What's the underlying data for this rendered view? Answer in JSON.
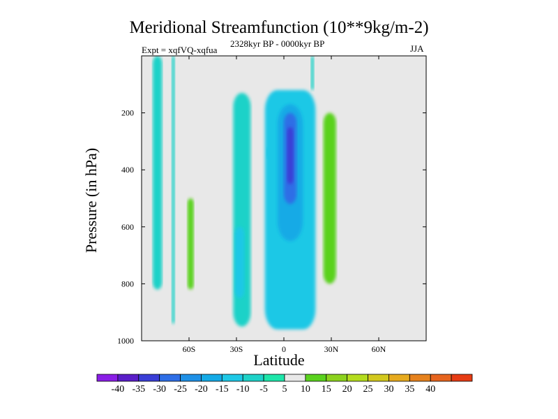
{
  "chart_data": {
    "type": "heatmap",
    "title": "Meridional Streamfunction (10**9kg/m-2)",
    "experiment": "Expt = xqfVQ-xqfua",
    "period": "2328kyr BP - 0000kyr BP",
    "season": "JJA",
    "xlabel": "Latitude",
    "ylabel": "Pressure (in hPa)",
    "xlim": [
      -90,
      90
    ],
    "ylim": [
      0,
      1000
    ],
    "x_ticks": [
      {
        "value": -60,
        "label": "60S"
      },
      {
        "value": -30,
        "label": "30S"
      },
      {
        "value": 0,
        "label": "0"
      },
      {
        "value": 30,
        "label": "30N"
      },
      {
        "value": 60,
        "label": "60N"
      }
    ],
    "y_ticks": [
      {
        "value": 200,
        "label": "200"
      },
      {
        "value": 400,
        "label": "400"
      },
      {
        "value": 600,
        "label": "600"
      },
      {
        "value": 800,
        "label": "800"
      },
      {
        "value": 1000,
        "label": "1000"
      }
    ],
    "colorbar": {
      "labels": [
        "-40",
        "-35",
        "-30",
        "-25",
        "-20",
        "-15",
        "-10",
        "-5",
        "5",
        "10",
        "15",
        "20",
        "25",
        "30",
        "35",
        "40"
      ],
      "colors": [
        "#8a1ee6",
        "#5a1ec8",
        "#3a3ed6",
        "#2e6ee6",
        "#1e90e6",
        "#14aae6",
        "#1ec8e6",
        "#1ed2c8",
        "#1ee6aa",
        "#e8e8e8",
        "#5ad21e",
        "#8cd21e",
        "#b4dc1e",
        "#d2c81e",
        "#e6aa1e",
        "#e6821e",
        "#e6641e",
        "#e63c14"
      ],
      "zero_band_color": "#e8e8e8"
    },
    "regions": [
      {
        "name": "high-lat-south-strip-a",
        "level": -7.5,
        "lat": [
          -83,
          -77
        ],
        "p": [
          0,
          820
        ]
      },
      {
        "name": "high-lat-south-strip-b",
        "level": -7.5,
        "lat": [
          -71,
          -69
        ],
        "p": [
          0,
          940
        ]
      },
      {
        "name": "southern-positive-cell",
        "level": 7.5,
        "lat": [
          -63,
          -45
        ],
        "p": [
          280,
          930
        ]
      },
      {
        "name": "southern-positive-cell-core",
        "level": 12.5,
        "lat": [
          -61,
          -57
        ],
        "p": [
          500,
          820
        ]
      },
      {
        "name": "southern-negative-band",
        "level": -7.5,
        "lat": [
          -32,
          -21
        ],
        "p": [
          130,
          950
        ]
      },
      {
        "name": "southern-negative-band-core",
        "level": -12.5,
        "lat": [
          -31,
          -25
        ],
        "p": [
          600,
          850
        ]
      },
      {
        "name": "small-negative-spot",
        "level": -7.5,
        "lat": [
          -11,
          -9
        ],
        "p": [
          320,
          360
        ]
      },
      {
        "name": "subtropical-positive-spot",
        "level": 7.5,
        "lat": [
          -9,
          -3
        ],
        "p": [
          620,
          860
        ]
      },
      {
        "name": "subtropical-positive-spot-core",
        "level": 12.5,
        "lat": [
          -7,
          -5
        ],
        "p": [
          720,
          820
        ]
      },
      {
        "name": "hadley-cell-negative",
        "level": -12.5,
        "lat": [
          -12,
          20
        ],
        "p": [
          120,
          960
        ]
      },
      {
        "name": "hadley-cell-negative-inner",
        "level": -17.5,
        "lat": [
          -4,
          12
        ],
        "p": [
          170,
          650
        ]
      },
      {
        "name": "hadley-cell-negative-core",
        "level": -27.5,
        "lat": [
          0,
          8
        ],
        "p": [
          200,
          520
        ]
      },
      {
        "name": "hadley-cell-negative-max",
        "level": -32.5,
        "lat": [
          2,
          6
        ],
        "p": [
          250,
          450
        ]
      },
      {
        "name": "tropical-upper-negative-spike",
        "level": -7.5,
        "lat": [
          17,
          19
        ],
        "p": [
          0,
          120
        ]
      },
      {
        "name": "northern-positive-cell",
        "level": 7.5,
        "lat": [
          23,
          37
        ],
        "p": [
          160,
          960
        ]
      },
      {
        "name": "northern-positive-cell-core",
        "level": 12.5,
        "lat": [
          25,
          33
        ],
        "p": [
          200,
          800
        ]
      }
    ]
  }
}
